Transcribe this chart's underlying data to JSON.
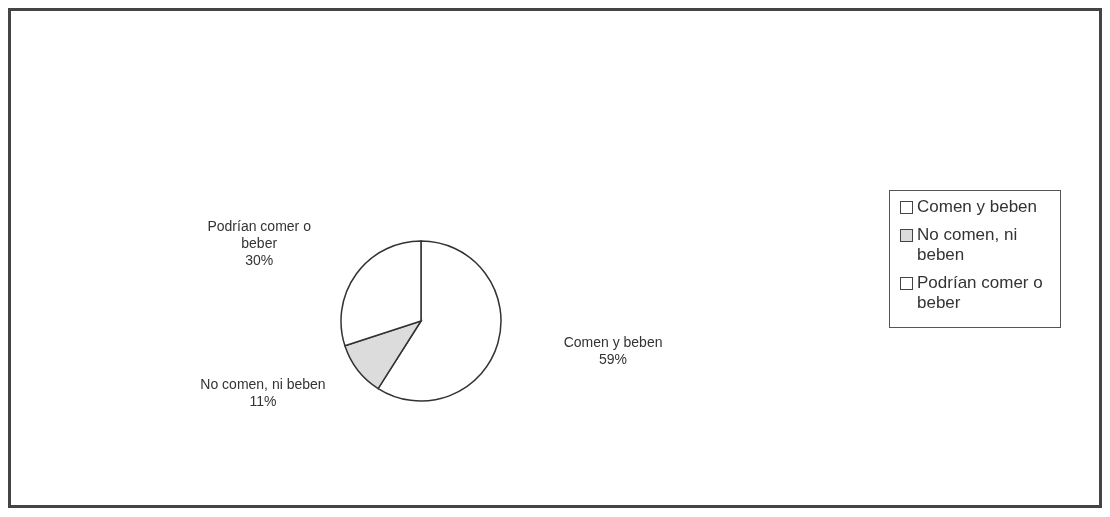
{
  "chart_data": {
    "type": "pie",
    "categories": [
      "Comen y beben",
      "No comen, ni beben",
      "Podrían comer o beber"
    ],
    "values": [
      59,
      11,
      30
    ],
    "value_labels": [
      "59%",
      "11%",
      "30%"
    ],
    "colors": [
      "#ffffff",
      "#dcdcdc",
      "#ffffff"
    ],
    "legend": "right"
  }
}
